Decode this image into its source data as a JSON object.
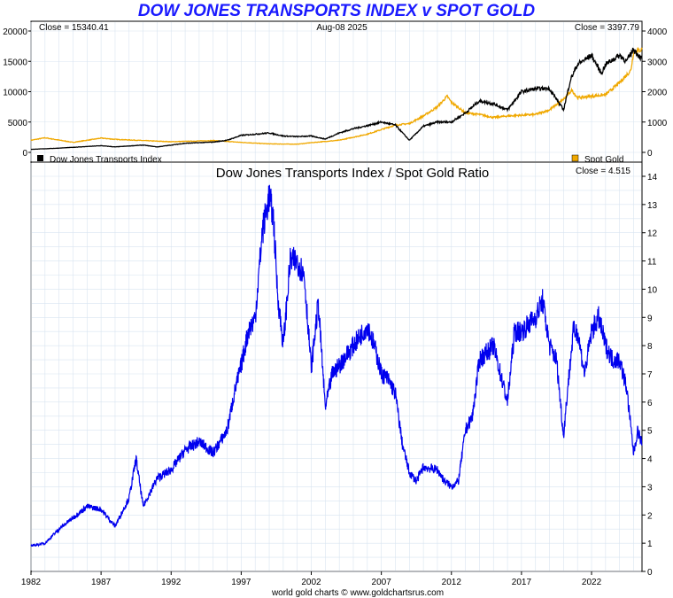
{
  "title": "DOW JONES TRANSPORTS INDEX v SPOT GOLD",
  "footer": "world gold charts © www.goldchartsrus.com",
  "colors": {
    "title": "#1a1aff",
    "transports": "#000000",
    "gold": "#f0a800",
    "ratio": "#0000ee",
    "grid": "#d8e4f0"
  },
  "top_panel": {
    "close_left": "Close = 15340.41",
    "date": "Aug-08  2025",
    "close_right": "Close = 3397.79",
    "legend_left": "Dow Jones Transports Index",
    "legend_right": "Spot Gold",
    "left_ticks": [
      "20000",
      "15000",
      "10000",
      "5000",
      "0"
    ],
    "right_ticks": [
      "4000",
      "3000",
      "2000",
      "1000",
      "0"
    ]
  },
  "bottom_panel": {
    "title": "Dow Jones Transports Index  /  Spot Gold Ratio",
    "close": "Close = 4.515",
    "right_ticks": [
      "14",
      "13",
      "12",
      "11",
      "10",
      "9",
      "8",
      "7",
      "6",
      "5",
      "4",
      "3",
      "2",
      "1",
      "0"
    ]
  },
  "x_ticks": [
    "1982",
    "1987",
    "1992",
    "1997",
    "2002",
    "2007",
    "2012",
    "2017",
    "2022"
  ],
  "chart_data": [
    {
      "type": "line",
      "title": "DOW JONES TRANSPORTS INDEX v SPOT GOLD",
      "x_range": [
        1982,
        2025.6
      ],
      "series": [
        {
          "name": "Dow Jones Transports Index",
          "axis": "left",
          "ylim": [
            0,
            20000
          ],
          "x": [
            1982,
            1984,
            1987,
            1988,
            1990,
            1991,
            1993,
            1995,
            1996,
            1997,
            1998,
            1999,
            2000,
            2001,
            2002,
            2003,
            2004,
            2005,
            2006,
            2007,
            2008,
            2009,
            2010,
            2011,
            2012,
            2013,
            2014,
            2015,
            2016,
            2017,
            2018,
            2019,
            2020,
            2020.5,
            2021,
            2022,
            2022.7,
            2023,
            2024,
            2024.5,
            2025,
            2025.6
          ],
          "y": [
            500,
            700,
            1100,
            900,
            1200,
            900,
            1500,
            1700,
            2000,
            2800,
            3000,
            3200,
            2700,
            2600,
            2700,
            2200,
            3200,
            3900,
            4400,
            5000,
            4500,
            2000,
            4300,
            5000,
            5000,
            6500,
            8500,
            8000,
            7000,
            10000,
            10500,
            10500,
            7000,
            12000,
            14500,
            16000,
            13000,
            14500,
            16000,
            15000,
            17000,
            15340
          ]
        },
        {
          "name": "Spot Gold",
          "axis": "right",
          "ylim": [
            0,
            4000
          ],
          "x": [
            1982,
            1983,
            1985,
            1987,
            1988,
            1990,
            1992,
            1995,
            1997,
            1999,
            2001,
            2002,
            2004,
            2006,
            2008,
            2009,
            2010,
            2011,
            2011.7,
            2012,
            2013,
            2014,
            2015,
            2016,
            2018,
            2019,
            2020,
            2020.6,
            2021,
            2022,
            2023,
            2024,
            2024.8,
            2025,
            2025.6
          ],
          "y": [
            400,
            480,
            330,
            470,
            430,
            390,
            350,
            390,
            330,
            280,
            270,
            320,
            400,
            600,
            900,
            950,
            1200,
            1500,
            1850,
            1650,
            1300,
            1250,
            1150,
            1200,
            1250,
            1400,
            1750,
            2050,
            1800,
            1850,
            1900,
            2300,
            2700,
            3300,
            3398
          ]
        },
        {
          "name": "Dow Jones Transports Index  /  Spot Gold Ratio",
          "axis": "ratio",
          "ylim": [
            0,
            14.5
          ],
          "x": [
            1982,
            1983,
            1984,
            1985,
            1986,
            1987,
            1988,
            1989,
            1989.5,
            1990,
            1991,
            1992,
            1993,
            1994,
            1995,
            1996,
            1996.5,
            1997,
            1997.5,
            1998,
            1998.5,
            1999,
            1999.3,
            1999.6,
            2000,
            2000.5,
            2001,
            2001.5,
            2002,
            2002.5,
            2003,
            2003.5,
            2004,
            2005,
            2006,
            2006.5,
            2007,
            2007.5,
            2008,
            2008.5,
            2009,
            2009.5,
            2010,
            2011,
            2011.5,
            2012,
            2012.5,
            2013,
            2013.5,
            2014,
            2015,
            2016,
            2016.5,
            2017,
            2018,
            2018.5,
            2019,
            2019.5,
            2020,
            2020.3,
            2020.7,
            2021,
            2021.5,
            2022,
            2022.5,
            2023,
            2023.5,
            2024,
            2024.5,
            2025,
            2025.3,
            2025.6
          ],
          "y": [
            0.9,
            1.0,
            1.5,
            1.9,
            2.3,
            2.2,
            1.6,
            2.6,
            4.0,
            2.3,
            3.3,
            3.6,
            4.3,
            4.6,
            4.2,
            5.0,
            6.3,
            7.3,
            8.5,
            9.0,
            12.0,
            13.3,
            12.5,
            9.8,
            8.0,
            11.0,
            11.0,
            10.5,
            7.2,
            9.5,
            5.8,
            7.0,
            7.3,
            8.0,
            8.7,
            8.0,
            7.0,
            6.8,
            6.3,
            4.5,
            3.5,
            3.2,
            3.7,
            3.6,
            3.2,
            3.0,
            3.2,
            5.0,
            5.5,
            7.5,
            8.0,
            6.0,
            8.5,
            8.5,
            9.0,
            9.6,
            8.0,
            7.5,
            4.8,
            6.5,
            8.5,
            8.5,
            7.0,
            8.5,
            9.0,
            8.0,
            7.5,
            7.5,
            6.5,
            4.2,
            5.0,
            4.5
          ]
        }
      ],
      "ratio_ylim": [
        0,
        14.5
      ],
      "left_ylim": [
        0,
        20000
      ],
      "right_ylim": [
        0,
        4000
      ],
      "grid": true
    }
  ]
}
